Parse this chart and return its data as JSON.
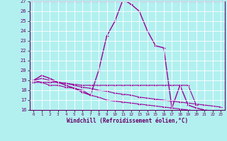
{
  "xlabel": "Windchill (Refroidissement éolien,°C)",
  "background_color": "#b2f0f0",
  "grid_color": "#ffffff",
  "line_color": "#990099",
  "xlim": [
    -0.5,
    23.5
  ],
  "ylim": [
    16,
    27
  ],
  "xtick_labels": [
    "0",
    "1",
    "2",
    "3",
    "4",
    "5",
    "6",
    "7",
    "8",
    "9",
    "1011",
    "1213",
    "1415",
    "1617",
    "1819",
    "2021",
    "2223"
  ],
  "yticks": [
    16,
    17,
    18,
    19,
    20,
    21,
    22,
    23,
    24,
    25,
    26,
    27
  ],
  "series1_x": [
    0,
    1,
    2,
    3,
    4,
    5,
    6,
    7,
    8,
    9,
    10,
    11,
    12,
    13,
    14,
    15,
    16,
    17,
    18,
    19,
    20,
    21,
    22,
    23
  ],
  "series1_y": [
    19.0,
    19.5,
    19.2,
    18.8,
    18.5,
    18.2,
    17.8,
    17.5,
    20.0,
    23.5,
    25.0,
    27.2,
    26.7,
    26.0,
    24.0,
    22.5,
    22.3,
    16.2,
    18.5,
    16.5,
    16.2,
    16.0,
    15.9,
    15.8
  ],
  "series2_x": [
    0,
    1,
    2,
    3,
    4,
    5,
    6,
    7,
    8,
    9,
    10,
    11,
    12,
    13,
    14,
    15,
    16,
    17,
    18,
    19,
    20,
    21,
    22,
    23
  ],
  "series2_y": [
    18.8,
    18.8,
    18.5,
    18.5,
    18.3,
    18.2,
    18.0,
    17.5,
    17.3,
    17.0,
    16.9,
    16.8,
    16.7,
    16.6,
    16.5,
    16.4,
    16.3,
    16.2,
    16.1,
    16.0,
    15.9,
    15.9,
    15.9,
    15.8
  ],
  "series3_x": [
    0,
    1,
    2,
    3,
    4,
    5,
    6,
    7,
    8,
    9,
    10,
    11,
    12,
    13,
    14,
    15,
    16,
    17,
    18,
    19,
    20
  ],
  "series3_y": [
    19.0,
    18.8,
    18.8,
    18.8,
    18.7,
    18.6,
    18.5,
    18.5,
    18.5,
    18.5,
    18.5,
    18.5,
    18.5,
    18.5,
    18.5,
    18.5,
    18.5,
    18.5,
    18.5,
    18.5,
    16.5
  ],
  "series4_x": [
    0,
    1,
    2,
    3,
    4,
    5,
    6,
    7,
    8,
    9,
    10,
    11,
    12,
    13,
    14,
    15,
    16,
    17,
    18,
    19,
    20,
    21,
    22,
    23
  ],
  "series4_y": [
    19.0,
    19.2,
    19.0,
    18.8,
    18.7,
    18.5,
    18.3,
    18.2,
    18.0,
    17.9,
    17.7,
    17.6,
    17.5,
    17.3,
    17.2,
    17.1,
    17.0,
    16.9,
    16.8,
    16.7,
    16.6,
    16.5,
    16.4,
    16.3
  ]
}
